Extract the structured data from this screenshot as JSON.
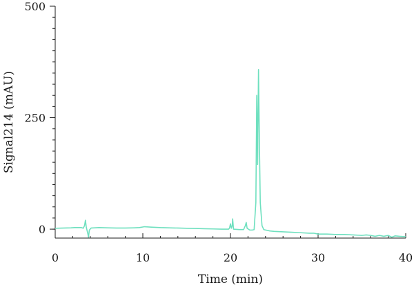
{
  "chart_data": {
    "type": "line",
    "xlabel": "Time (min)",
    "ylabel": "Signal214 (mAU)",
    "xlim": [
      0,
      40
    ],
    "ylim": [
      -20,
      500
    ],
    "x_ticks": [
      {
        "value": 0,
        "label": "0"
      },
      {
        "value": 10,
        "label": "10"
      },
      {
        "value": 20,
        "label": "20"
      },
      {
        "value": 30,
        "label": "30"
      },
      {
        "value": 40,
        "label": "40"
      }
    ],
    "y_ticks": [
      {
        "value": 0,
        "label": "0"
      },
      {
        "value": 250,
        "label": "250"
      },
      {
        "value": 500,
        "label": "500"
      }
    ],
    "x_minor_step": 2,
    "y_minor_step": 25,
    "grid": false,
    "line_color": "#6fe0bf",
    "series": [
      {
        "points": [
          [
            0,
            2
          ],
          [
            1,
            2.5
          ],
          [
            1.8,
            3
          ],
          [
            2.2,
            3.5
          ],
          [
            3.0,
            3.5
          ],
          [
            3.2,
            2
          ],
          [
            3.35,
            8
          ],
          [
            3.45,
            20
          ],
          [
            3.55,
            4
          ],
          [
            3.7,
            -8
          ],
          [
            3.8,
            -18
          ],
          [
            3.9,
            -2
          ],
          [
            4.1,
            2.5
          ],
          [
            5,
            3.5
          ],
          [
            6,
            3
          ],
          [
            7,
            2.5
          ],
          [
            8,
            2.5
          ],
          [
            9,
            3
          ],
          [
            9.6,
            3.5
          ],
          [
            10.2,
            5.5
          ],
          [
            11,
            4.5
          ],
          [
            12,
            3.5
          ],
          [
            13,
            3
          ],
          [
            14,
            2.5
          ],
          [
            15,
            2
          ],
          [
            16,
            1.5
          ],
          [
            17,
            1
          ],
          [
            18,
            0.5
          ],
          [
            19,
            0
          ],
          [
            19.8,
            0
          ],
          [
            19.9,
            3
          ],
          [
            20.0,
            12
          ],
          [
            20.1,
            2
          ],
          [
            20.2,
            8
          ],
          [
            20.25,
            23
          ],
          [
            20.35,
            0
          ],
          [
            21,
            -1
          ],
          [
            21.5,
            -1
          ],
          [
            21.7,
            8
          ],
          [
            21.8,
            15
          ],
          [
            21.9,
            2
          ],
          [
            22.2,
            -2
          ],
          [
            22.5,
            -2
          ],
          [
            22.7,
            -1
          ],
          [
            22.9,
            60
          ],
          [
            23.0,
            300
          ],
          [
            23.1,
            145
          ],
          [
            23.2,
            358
          ],
          [
            23.3,
            200
          ],
          [
            23.4,
            60
          ],
          [
            23.6,
            8
          ],
          [
            23.8,
            -1
          ],
          [
            24.5,
            -4
          ],
          [
            25,
            -5
          ],
          [
            26,
            -6
          ],
          [
            27,
            -7
          ],
          [
            28,
            -8
          ],
          [
            29,
            -9
          ],
          [
            29.5,
            -9
          ],
          [
            30,
            -11
          ],
          [
            31,
            -11
          ],
          [
            32,
            -12
          ],
          [
            33,
            -12
          ],
          [
            34,
            -13
          ],
          [
            35,
            -14
          ],
          [
            35.5,
            -13
          ],
          [
            36,
            -14
          ],
          [
            36.5,
            -16
          ],
          [
            37,
            -14
          ],
          [
            37.5,
            -16
          ],
          [
            38,
            -14
          ],
          [
            38.4,
            -18
          ],
          [
            38.8,
            -15
          ],
          [
            39.3,
            -16
          ],
          [
            40,
            -17
          ]
        ]
      }
    ]
  }
}
